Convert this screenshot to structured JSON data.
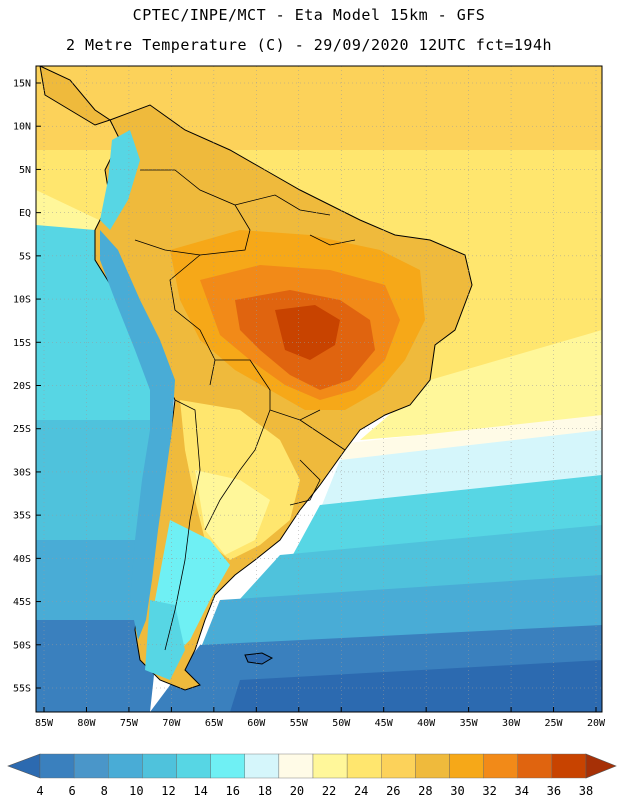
{
  "header": {
    "line1": "CPTEC/INPE/MCT -  Eta Model 15km - GFS",
    "line2": "2 Metre Temperature (C) - 29/09/2020 12UTC fct=194h"
  },
  "map": {
    "lat_labels": [
      "15N",
      "10N",
      "5N",
      "EQ",
      "5S",
      "10S",
      "15S",
      "20S",
      "25S",
      "30S",
      "35S",
      "40S",
      "45S",
      "50S",
      "55S"
    ],
    "lon_labels": [
      "85W",
      "80W",
      "75W",
      "70W",
      "65W",
      "60W",
      "55W",
      "50W",
      "45W",
      "40W",
      "35W",
      "30W",
      "25W",
      "20W"
    ],
    "lat_values": [
      15,
      10,
      5,
      0,
      -5,
      -10,
      -15,
      -20,
      -25,
      -30,
      -35,
      -40,
      -45,
      -50,
      -55
    ],
    "lon_values": [
      -85,
      -80,
      -75,
      -70,
      -65,
      -60,
      -55,
      -50,
      -45,
      -40,
      -35,
      -30,
      -25,
      -20
    ]
  },
  "colorbar": {
    "labels": [
      "4",
      "6",
      "8",
      "10",
      "12",
      "14",
      "16",
      "18",
      "20",
      "22",
      "24",
      "26",
      "28",
      "30",
      "32",
      "34",
      "36",
      "38"
    ],
    "colors": [
      "#2c6ab0",
      "#3a80be",
      "#4a96c9",
      "#49acd6",
      "#4fc2dc",
      "#57d6e4",
      "#6ff0f4",
      "#d5f6fb",
      "#fffbe7",
      "#fff79a",
      "#ffe66e",
      "#fcd25a",
      "#efba3c",
      "#f6a818",
      "#f28a18",
      "#e0640f",
      "#c84300",
      "#a63006"
    ]
  }
}
